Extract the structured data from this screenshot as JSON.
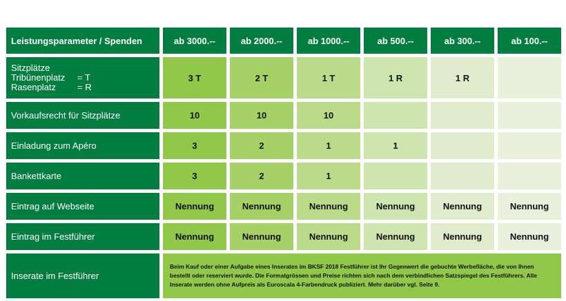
{
  "header": {
    "title": "Leistungsparameter / Spenden",
    "columns": [
      "ab 3000.--",
      "ab 2000.--",
      "ab 1000.--",
      "ab 500.--",
      "ab 300.--",
      "ab 100.--"
    ]
  },
  "rows": {
    "sitzplaetze": {
      "label": "Sitzplätze",
      "sub1_left": "Tribünenplatz",
      "sub1_right": "= T",
      "sub2_left": "Rasenplatz",
      "sub2_right": "= R",
      "values": [
        "3 T",
        "2 T",
        "1 T",
        "1 R",
        "1 R",
        ""
      ]
    },
    "vorkaufsrecht": {
      "label": "Vorkaufsrecht für Sitzplätze",
      "values": [
        "10",
        "10",
        "10",
        "",
        "",
        ""
      ]
    },
    "apero": {
      "label": "Einladung zum Apéro",
      "values": [
        "3",
        "2",
        "1",
        "1",
        "",
        ""
      ]
    },
    "bankett": {
      "label": "Bankettkarte",
      "values": [
        "3",
        "2",
        "1",
        "",
        "",
        ""
      ]
    },
    "webseite": {
      "label": "Eintrag auf Webseite",
      "values": [
        "Nennung",
        "Nennung",
        "Nennung",
        "Nennung",
        "Nennung",
        "Nennung"
      ]
    },
    "festfuehrer": {
      "label": "Eintrag im Festführer",
      "values": [
        "Nennung",
        "Nennung",
        "Nennung",
        "Nennung",
        "Nennung",
        "Nennung"
      ]
    },
    "inserate": {
      "label": "Inserate im Festführer",
      "note": "Beim Kauf oder einer Aufgabe eines Inserates im BKSF 2018 Festführer ist Ihr Gegenwert die gebuchte Werbefläche, die von Ihnen bestellt oder reserviert wurde. Die Formatgrössen und Preise richten sich nach dem verbindlichen Satzspiegel des Festführers. Alle Inserate werden ohne Aufpreis als Euroscala 4-Farbendruck publiziert. Mehr darüber vgl. Seite 9."
    }
  },
  "colors": {
    "header_green": "#007d3f",
    "tier_shades": [
      "#92c84a",
      "#a6d167",
      "#bbdb8a",
      "#cfe5b0",
      "#e0eccd",
      "#e9f1dd"
    ]
  }
}
